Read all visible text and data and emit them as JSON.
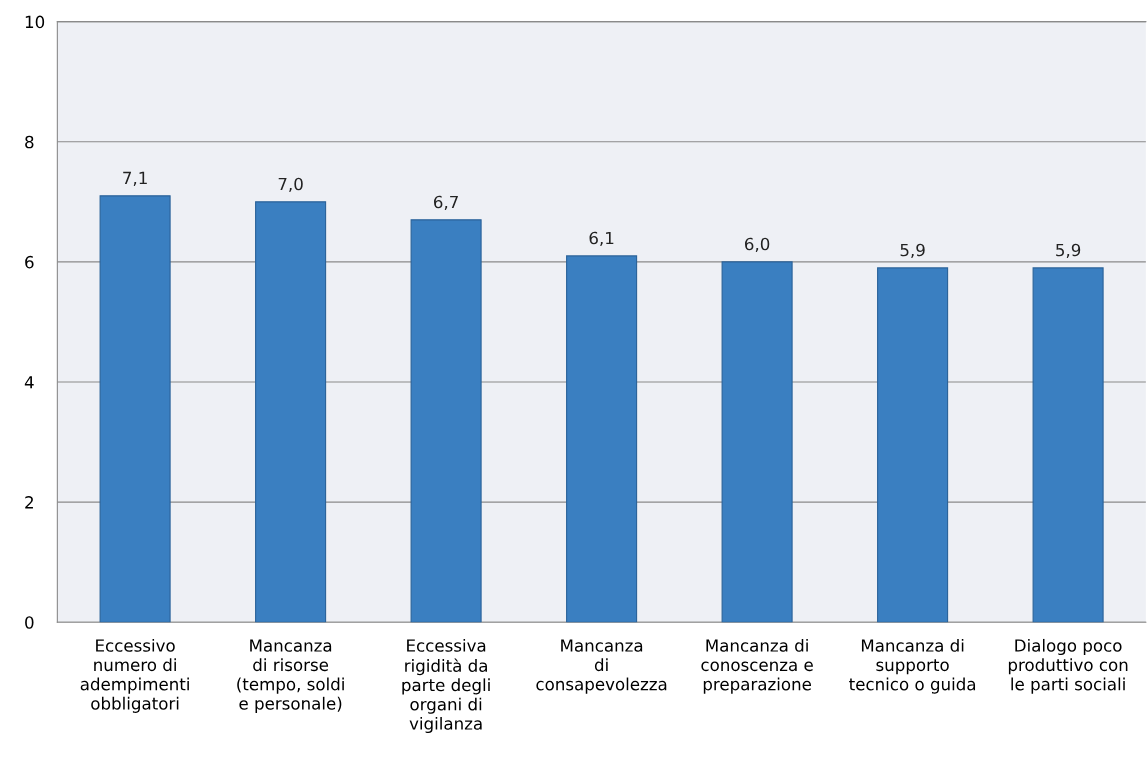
{
  "chart_data": {
    "type": "bar",
    "categories": [
      "Eccessivo\nnumero di\nadempimenti\nobbligatori",
      "Mancanza\ndi risorse\n(tempo, soldi\ne personale)",
      "Eccessiva\nrigidità da\nparte degli\norgani di\nvigilanza",
      "Mancanza\ndi\nconsapevolezza",
      "Mancanza di\nconoscenza e\npreparazione",
      "Mancanza di\nsupporto\ntecnico o guida",
      "Dialogo poco\nproduttivo con\nle parti sociali"
    ],
    "values": [
      7.1,
      7.0,
      6.7,
      6.1,
      6.0,
      5.9,
      5.9
    ],
    "value_labels": [
      "7,1",
      "7,0",
      "6,7",
      "6,1",
      "6,0",
      "5,9",
      "5,9"
    ],
    "color": "#3a7fc1",
    "ylim": [
      0,
      10
    ],
    "yticks": [
      0,
      2,
      4,
      6,
      8,
      10
    ],
    "grid": "y"
  }
}
